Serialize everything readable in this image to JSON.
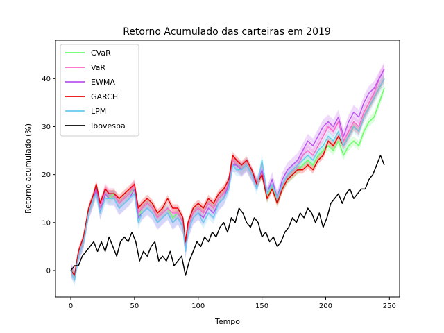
{
  "chart_data": {
    "type": "line",
    "title": "Retorno Acumulado das carteiras em 2019",
    "xlabel": "Tempo",
    "ylabel": "Retorno acumulado (%)",
    "xlim": [
      -12,
      258
    ],
    "ylim": [
      -5.5,
      48
    ],
    "xticks": [
      0,
      50,
      100,
      150,
      200,
      250
    ],
    "yticks": [
      0,
      10,
      20,
      30,
      40
    ],
    "grid": false,
    "legend_position": "upper-left",
    "series": [
      {
        "name": "CVaR",
        "color": "#66ff66",
        "band": 1.0,
        "x": [
          0,
          3,
          6,
          10,
          14,
          18,
          20,
          23,
          27,
          30,
          34,
          38,
          42,
          46,
          50,
          53,
          56,
          60,
          64,
          68,
          72,
          76,
          80,
          84,
          88,
          90,
          92,
          96,
          100,
          104,
          108,
          112,
          116,
          120,
          124,
          127,
          130,
          134,
          138,
          142,
          146,
          150,
          154,
          158,
          162,
          166,
          170,
          174,
          178,
          182,
          186,
          190,
          194,
          198,
          202,
          206,
          210,
          214,
          218,
          222,
          226,
          230,
          234,
          238,
          242,
          246
        ],
        "y": [
          0,
          -1,
          3,
          6,
          12,
          15,
          17,
          13,
          16,
          15,
          16,
          14,
          15,
          16,
          17,
          11,
          13,
          14,
          13,
          11,
          12,
          13,
          11,
          12,
          10,
          5,
          9,
          12,
          13,
          12,
          14,
          13,
          15,
          16,
          18,
          23,
          22,
          21,
          22,
          20,
          18,
          20,
          15,
          18,
          14,
          17,
          19,
          20,
          21,
          22,
          23,
          22,
          24,
          25,
          26,
          25,
          27,
          24,
          26,
          27,
          26,
          29,
          31,
          32,
          35,
          38
        ]
      },
      {
        "name": "VaR",
        "color": "#ff66cc",
        "band": 1.2,
        "x": [
          0,
          3,
          6,
          10,
          14,
          18,
          20,
          23,
          27,
          30,
          34,
          38,
          42,
          46,
          50,
          53,
          56,
          60,
          64,
          68,
          72,
          76,
          80,
          84,
          88,
          90,
          92,
          96,
          100,
          104,
          108,
          112,
          116,
          120,
          124,
          127,
          130,
          134,
          138,
          142,
          146,
          150,
          154,
          158,
          162,
          166,
          170,
          174,
          178,
          182,
          186,
          190,
          194,
          198,
          202,
          206,
          210,
          214,
          218,
          222,
          226,
          230,
          234,
          238,
          242,
          246
        ],
        "y": [
          0,
          -1,
          3,
          6,
          12,
          15,
          17,
          13,
          17,
          16,
          16,
          14,
          15,
          16,
          18,
          12,
          13,
          14,
          13,
          11,
          12,
          13,
          12,
          12,
          10,
          5,
          9,
          12,
          13,
          12,
          14,
          13,
          15,
          16,
          18,
          23,
          22,
          21,
          22,
          20,
          18,
          21,
          16,
          18,
          15,
          18,
          20,
          21,
          22,
          24,
          25,
          24,
          26,
          28,
          30,
          29,
          31,
          27,
          29,
          31,
          30,
          33,
          35,
          37,
          40,
          42
        ]
      },
      {
        "name": "EWMA",
        "color": "#bb55ee",
        "band": 1.5,
        "x": [
          0,
          3,
          6,
          10,
          14,
          18,
          20,
          23,
          27,
          30,
          34,
          38,
          42,
          46,
          50,
          53,
          56,
          60,
          64,
          68,
          72,
          76,
          80,
          84,
          88,
          90,
          92,
          96,
          100,
          104,
          108,
          112,
          116,
          120,
          124,
          127,
          130,
          134,
          138,
          142,
          146,
          150,
          154,
          158,
          162,
          166,
          170,
          174,
          178,
          182,
          186,
          190,
          194,
          198,
          202,
          206,
          210,
          214,
          218,
          222,
          226,
          230,
          234,
          238,
          242,
          246
        ],
        "y": [
          0,
          -1,
          3,
          6,
          12,
          15,
          17,
          12,
          16,
          15,
          15,
          13,
          14,
          15,
          17,
          11,
          12,
          13,
          12,
          10,
          11,
          12,
          10,
          11,
          9,
          4,
          8,
          11,
          12,
          11,
          13,
          12,
          14,
          15,
          18,
          22,
          22,
          21,
          22,
          20,
          18,
          21,
          16,
          19,
          15,
          19,
          21,
          22,
          23,
          25,
          27,
          26,
          28,
          30,
          31,
          30,
          32,
          28,
          31,
          33,
          32,
          35,
          37,
          38,
          40,
          42
        ]
      },
      {
        "name": "GARCH",
        "color": "#ee0000",
        "band": 0.8,
        "x": [
          0,
          3,
          6,
          10,
          14,
          18,
          20,
          23,
          27,
          30,
          34,
          38,
          42,
          46,
          50,
          53,
          56,
          60,
          64,
          68,
          72,
          76,
          80,
          84,
          88,
          90,
          92,
          96,
          100,
          104,
          108,
          112,
          116,
          120,
          124,
          127,
          130,
          134,
          138,
          142,
          146,
          150,
          154,
          158,
          162,
          166,
          170,
          174,
          178,
          182,
          186,
          190,
          194,
          198,
          202,
          206,
          210,
          214,
          218,
          222,
          226,
          230,
          234,
          238,
          242,
          246
        ],
        "y": [
          0,
          -1,
          4,
          7,
          13,
          16,
          18,
          14,
          17,
          16,
          16,
          15,
          16,
          17,
          18,
          13,
          14,
          15,
          14,
          12,
          13,
          15,
          13,
          13,
          11,
          6,
          10,
          13,
          14,
          13,
          15,
          14,
          16,
          17,
          19,
          24,
          23,
          22,
          23,
          21,
          18,
          20,
          15,
          17,
          14,
          17,
          19,
          20,
          21,
          21,
          22,
          21,
          23,
          24,
          27,
          26,
          28,
          26,
          28,
          30,
          29,
          32,
          34,
          36,
          38,
          40
        ]
      },
      {
        "name": "LPM",
        "color": "#66ccee",
        "band": 1.3,
        "x": [
          0,
          3,
          6,
          10,
          14,
          18,
          20,
          23,
          27,
          30,
          34,
          38,
          42,
          46,
          50,
          53,
          56,
          60,
          64,
          68,
          72,
          76,
          80,
          84,
          88,
          90,
          92,
          96,
          100,
          104,
          108,
          112,
          116,
          120,
          124,
          127,
          130,
          134,
          138,
          142,
          146,
          150,
          154,
          158,
          162,
          166,
          170,
          174,
          178,
          182,
          186,
          190,
          194,
          198,
          202,
          206,
          210,
          214,
          218,
          222,
          226,
          230,
          234,
          238,
          242,
          246
        ],
        "y": [
          0,
          -2,
          3,
          6,
          12,
          15,
          16,
          12,
          15,
          15,
          15,
          13,
          14,
          15,
          16,
          10,
          12,
          13,
          12,
          10,
          11,
          12,
          10,
          11,
          9,
          4,
          8,
          11,
          12,
          10,
          12,
          11,
          14,
          15,
          17,
          22,
          21,
          21,
          22,
          20,
          17,
          23,
          16,
          18,
          15,
          18,
          20,
          21,
          22,
          23,
          24,
          23,
          25,
          26,
          28,
          27,
          29,
          26,
          28,
          30,
          29,
          32,
          34,
          36,
          38,
          40
        ]
      },
      {
        "name": "Ibovespa",
        "color": "#000000",
        "band": 0,
        "x": [
          0,
          3,
          6,
          9,
          12,
          15,
          18,
          21,
          24,
          27,
          30,
          33,
          36,
          39,
          42,
          45,
          48,
          51,
          54,
          57,
          60,
          63,
          66,
          69,
          72,
          75,
          78,
          81,
          84,
          87,
          90,
          93,
          96,
          99,
          102,
          105,
          108,
          111,
          114,
          117,
          120,
          123,
          126,
          129,
          132,
          135,
          138,
          141,
          144,
          147,
          150,
          153,
          156,
          159,
          162,
          165,
          168,
          171,
          174,
          177,
          180,
          183,
          186,
          189,
          192,
          195,
          198,
          201,
          204,
          207,
          210,
          213,
          216,
          219,
          222,
          225,
          228,
          231,
          234,
          237,
          240,
          243,
          246
        ],
        "y": [
          0,
          1,
          1,
          3,
          4,
          5,
          6,
          4,
          6,
          4,
          7,
          5,
          3,
          6,
          7,
          6,
          8,
          6,
          2,
          4,
          3,
          5,
          6,
          2,
          3,
          2,
          4,
          1,
          2,
          3,
          -1,
          2,
          4,
          6,
          5,
          7,
          6,
          8,
          7,
          9,
          10,
          8,
          11,
          10,
          13,
          12,
          10,
          9,
          11,
          10,
          7,
          8,
          6,
          7,
          5,
          6,
          8,
          9,
          11,
          10,
          12,
          11,
          13,
          12,
          10,
          12,
          9,
          11,
          14,
          15,
          16,
          14,
          16,
          17,
          15,
          16,
          17,
          17,
          19,
          20,
          22,
          24,
          22
        ]
      }
    ]
  }
}
